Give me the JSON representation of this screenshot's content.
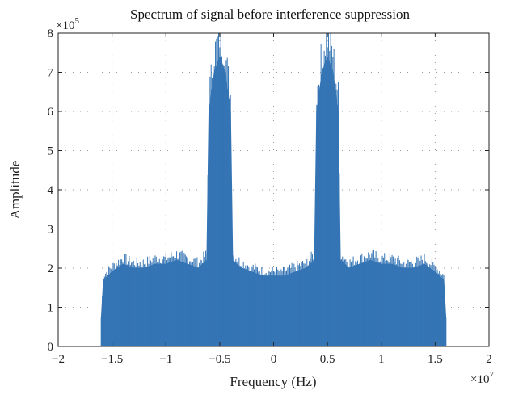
{
  "chart_data": {
    "type": "area",
    "title": "Spectrum of signal before interference suppression",
    "xlabel": "Frequency (Hz)",
    "ylabel": "Amplitude",
    "x_exponent_label": "×10",
    "x_exponent_power": "7",
    "y_exponent_label": "×10",
    "y_exponent_power": "5",
    "xlim": [
      -2,
      2
    ],
    "ylim": [
      0,
      8
    ],
    "x_ticks": [
      -2,
      -1.5,
      -1,
      -0.5,
      0,
      0.5,
      1,
      1.5,
      2
    ],
    "x_tick_labels": [
      "−2",
      "−1.5",
      "−1",
      "−0.5",
      "0",
      "0.5",
      "1",
      "1.5",
      "2"
    ],
    "y_ticks": [
      0,
      1,
      2,
      3,
      4,
      5,
      6,
      7,
      8
    ],
    "y_tick_labels": [
      "0",
      "1",
      "2",
      "3",
      "4",
      "5",
      "6",
      "7",
      "8"
    ],
    "grid": "dotted",
    "legend": "none",
    "series_color": "#3575b5",
    "series": [
      {
        "x": [
          -1.6,
          -1.58,
          -1.5,
          -1.4,
          -1.3,
          -1.2,
          -1.1,
          -1.0,
          -0.9,
          -0.8,
          -0.7,
          -0.62,
          -0.6,
          -0.55,
          -0.5,
          -0.45,
          -0.4,
          -0.38,
          -0.3,
          -0.2,
          -0.1,
          0.0,
          0.1,
          0.2,
          0.3,
          0.38,
          0.4,
          0.45,
          0.5,
          0.55,
          0.6,
          0.62,
          0.7,
          0.8,
          0.9,
          1.0,
          1.1,
          1.2,
          1.3,
          1.4,
          1.5,
          1.58,
          1.6
        ],
        "y": [
          0.7,
          1.7,
          1.9,
          2.1,
          2.0,
          2.0,
          2.1,
          2.1,
          2.2,
          2.1,
          2.0,
          2.2,
          6.0,
          7.0,
          7.4,
          7.0,
          6.0,
          2.2,
          2.0,
          1.9,
          1.8,
          1.8,
          1.8,
          1.9,
          2.0,
          2.2,
          6.0,
          7.0,
          7.4,
          7.0,
          6.0,
          2.2,
          2.0,
          2.1,
          2.2,
          2.1,
          2.1,
          2.0,
          2.0,
          2.1,
          1.9,
          1.7,
          0.7
        ]
      }
    ]
  }
}
